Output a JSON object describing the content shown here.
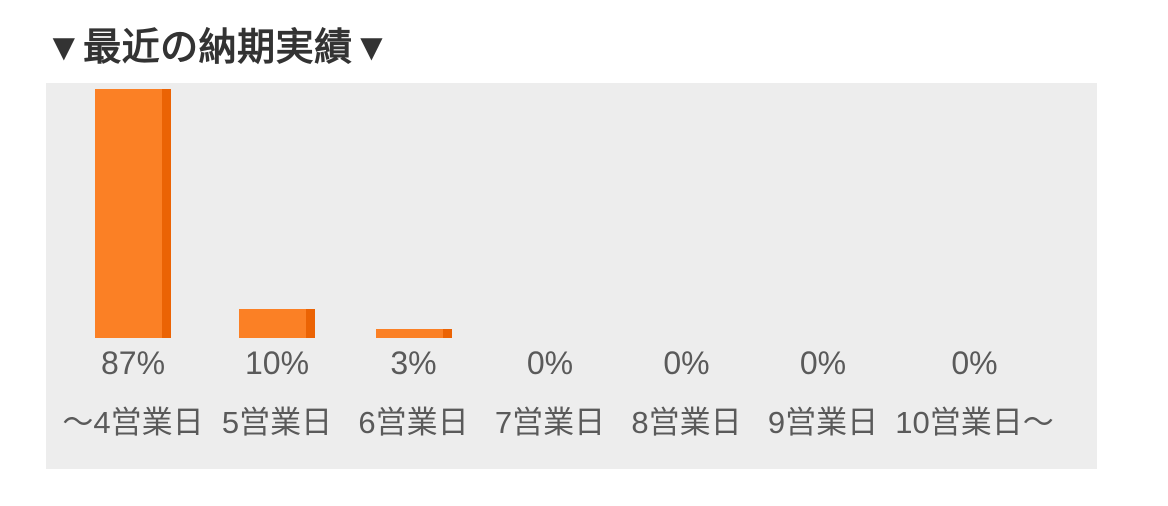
{
  "page": {
    "title": "▼最近の納期実績▼"
  },
  "colors": {
    "bar": "#fb8025",
    "bar_side": "#eb6304",
    "panel_bg": "#ededed",
    "label_text": "#5a5a5a",
    "title_text": "#333333"
  },
  "chart_data": {
    "type": "bar",
    "title": "▼最近の納期実績▼",
    "categories": [
      "〜4営業日",
      "5営業日",
      "6営業日",
      "7営業日",
      "8営業日",
      "9営業日",
      "10営業日〜"
    ],
    "values": [
      87,
      10,
      3,
      0,
      0,
      0,
      0
    ],
    "value_labels": [
      "87%",
      "10%",
      "3%",
      "0%",
      "0%",
      "0%",
      "0%"
    ],
    "xlabel": "",
    "ylabel": "",
    "ylim": [
      0,
      100
    ],
    "grid": false,
    "legend": false,
    "bar_color": "#fb8025",
    "bar_side_color": "#eb6304",
    "background": "#ededed"
  }
}
